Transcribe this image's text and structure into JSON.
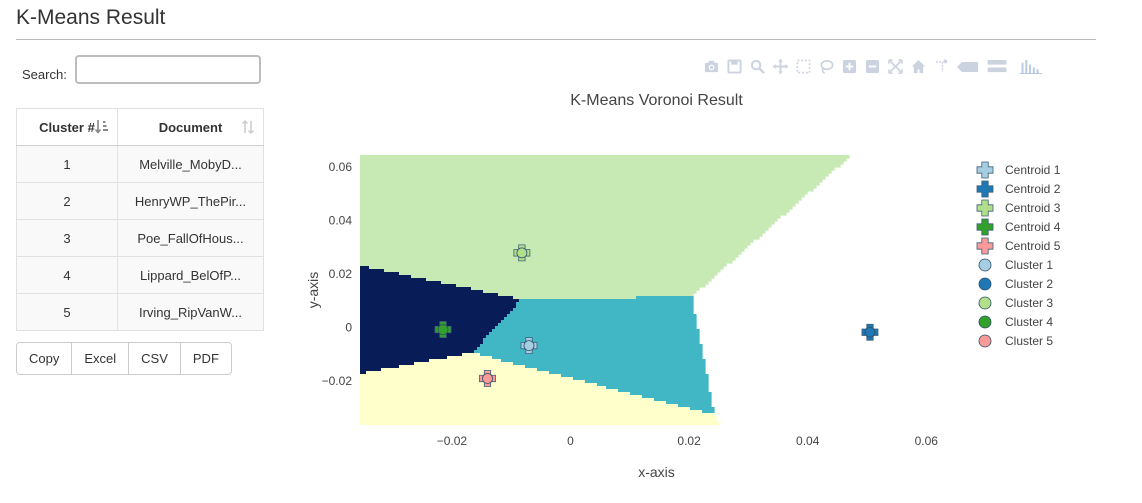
{
  "page": {
    "title": "K-Means Result"
  },
  "search": {
    "label": "Search:",
    "value": "",
    "placeholder": ""
  },
  "table": {
    "headers": {
      "cluster": "Cluster #",
      "document": "Document"
    },
    "rows": [
      {
        "cluster": "1",
        "document": "Melville_MobyD..."
      },
      {
        "cluster": "2",
        "document": "HenryWP_ThePir..."
      },
      {
        "cluster": "3",
        "document": "Poe_FallOfHous..."
      },
      {
        "cluster": "4",
        "document": "Lippard_BelOfP..."
      },
      {
        "cluster": "5",
        "document": "Irving_RipVanW..."
      }
    ]
  },
  "export_buttons": {
    "copy": "Copy",
    "excel": "Excel",
    "csv": "CSV",
    "pdf": "PDF"
  },
  "modebar_icons": [
    "camera-icon",
    "save-icon",
    "zoom-icon",
    "pan-icon",
    "box-select-icon",
    "lasso-icon",
    "zoom-in-icon",
    "zoom-out-icon",
    "autoscale-icon",
    "home-icon",
    "spike-lines-icon",
    "hover-closest-icon",
    "hover-compare-icon",
    "plotly-logo-icon"
  ],
  "chart_data": {
    "type": "scatter",
    "title": "K-Means Voronoi Result",
    "xlabel": "x-axis",
    "ylabel": "y-axis",
    "xlim": [
      -0.0355,
      0.0645
    ],
    "ylim": [
      -0.0365,
      0.0645
    ],
    "xticks": [
      -0.02,
      0,
      0.02,
      0.04,
      0.06
    ],
    "yticks": [
      -0.02,
      0,
      0.02,
      0.04,
      0.06
    ],
    "xtick_labels": [
      "−0.02",
      "0",
      "0.02",
      "0.04",
      "0.06"
    ],
    "ytick_labels": [
      "−0.02",
      "0",
      "0.02",
      "0.04",
      "0.06"
    ],
    "legend_position": "right",
    "background": "voronoi regions",
    "region_colors": [
      "#41b6c4",
      "#225ea8",
      "#c7e9b4",
      "#081d58",
      "#ffffcc"
    ],
    "series": [
      {
        "name": "Centroid 1",
        "marker": "cross",
        "color": "#a6cee3",
        "points": [
          [
            -0.007,
            -0.0068
          ]
        ]
      },
      {
        "name": "Centroid 2",
        "marker": "cross",
        "color": "#1f78b4",
        "points": [
          [
            0.0505,
            -0.0018
          ]
        ]
      },
      {
        "name": "Centroid 3",
        "marker": "cross",
        "color": "#b2df8a",
        "points": [
          [
            -0.0082,
            0.0279
          ]
        ]
      },
      {
        "name": "Centroid 4",
        "marker": "cross",
        "color": "#33a02c",
        "points": [
          [
            -0.0215,
            -0.0008
          ]
        ]
      },
      {
        "name": "Centroid 5",
        "marker": "cross",
        "color": "#fb9a99",
        "points": [
          [
            -0.014,
            -0.0191
          ]
        ]
      },
      {
        "name": "Cluster 1",
        "marker": "circle",
        "color": "#a6cee3",
        "points": [
          [
            -0.007,
            -0.0068
          ]
        ]
      },
      {
        "name": "Cluster 2",
        "marker": "circle",
        "color": "#1f78b4",
        "points": [
          [
            0.0505,
            -0.0018
          ]
        ]
      },
      {
        "name": "Cluster 3",
        "marker": "circle",
        "color": "#b2df8a",
        "points": [
          [
            -0.0082,
            0.0279
          ]
        ]
      },
      {
        "name": "Cluster 4",
        "marker": "circle",
        "color": "#33a02c",
        "points": [
          [
            -0.0215,
            -0.0008
          ]
        ]
      },
      {
        "name": "Cluster 5",
        "marker": "circle",
        "color": "#fb9a99",
        "points": [
          [
            -0.014,
            -0.0191
          ]
        ]
      }
    ]
  }
}
